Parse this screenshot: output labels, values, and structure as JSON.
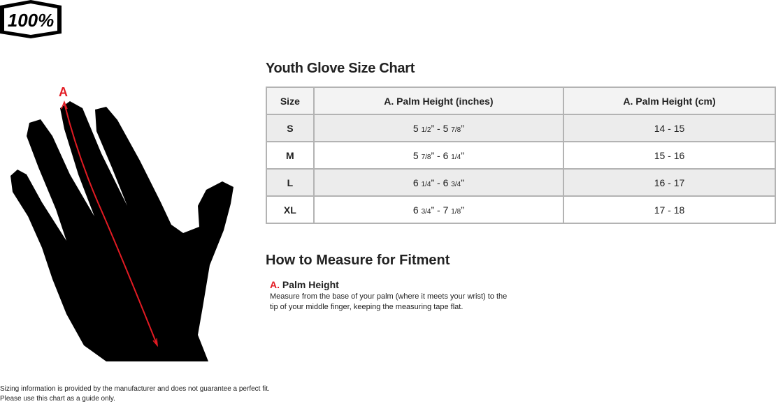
{
  "logo": {
    "text": "100%"
  },
  "diagram": {
    "marker": "A",
    "accent": "#e31b23"
  },
  "chart": {
    "title": "Youth Glove Size Chart",
    "headers": [
      "Size",
      "A. Palm Height (inches)",
      "A. Palm Height (cm)"
    ],
    "rows": [
      {
        "size": "S",
        "in_a": "5",
        "in_a_frac": "1/2",
        "in_b": "5",
        "in_b_frac": "7/8",
        "cm": "14 - 15"
      },
      {
        "size": "M",
        "in_a": "5",
        "in_a_frac": "7/8",
        "in_b": "6",
        "in_b_frac": "1/4",
        "cm": "15 - 16"
      },
      {
        "size": "L",
        "in_a": "6",
        "in_a_frac": "1/4",
        "in_b": "6",
        "in_b_frac": "3/4",
        "cm": "16 - 17"
      },
      {
        "size": "XL",
        "in_a": "6",
        "in_a_frac": "3/4",
        "in_b": "7",
        "in_b_frac": "1/8",
        "cm": "17 - 18"
      }
    ]
  },
  "measure": {
    "title": "How to Measure for Fitment",
    "label_letter": "A.",
    "label": "Palm Height",
    "line1": "Measure from the base of your palm (where it meets your wrist) to the",
    "line2": "tip of your middle finger, keeping the measuring tape flat."
  },
  "footer": {
    "line1": "Sizing information is provided by the manufacturer and does not guarantee a perfect fit.",
    "line2": "Please use this chart as a guide only."
  }
}
